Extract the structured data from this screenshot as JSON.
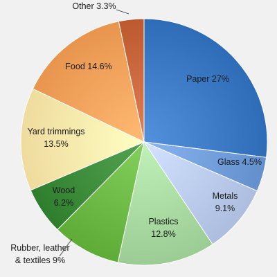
{
  "chart_data": {
    "type": "pie",
    "title": "",
    "start_angle_deg": 0,
    "direction": "clockwise",
    "slices": [
      {
        "name": "Paper",
        "value": 27,
        "label_lines": [
          "Paper 27%"
        ],
        "color": "#3a78c4"
      },
      {
        "name": "Glass",
        "value": 4.5,
        "label_lines": [
          "Glass 4.5%"
        ],
        "color": "#6f9bd8"
      },
      {
        "name": "Metals",
        "value": 9.1,
        "label_lines": [
          "Metals",
          "9.1%"
        ],
        "color": "#b9c9ea"
      },
      {
        "name": "Plastics",
        "value": 12.8,
        "label_lines": [
          "Plastics",
          "12.8%"
        ],
        "color": "#a7d8a0"
      },
      {
        "name": "Rubber, leather & textiles",
        "value": 9,
        "label_lines": [
          "Rubber, leather",
          "& textiles 9%"
        ],
        "color": "#6bb744"
      },
      {
        "name": "Wood",
        "value": 6.2,
        "label_lines": [
          "Wood",
          "6.2%"
        ],
        "color": "#3a8a3a"
      },
      {
        "name": "Yard trimmings",
        "value": 13.5,
        "label_lines": [
          "Yard trimmings",
          "13.5%"
        ],
        "color": "#fbe7aa"
      },
      {
        "name": "Food",
        "value": 14.6,
        "label_lines": [
          "Food 14.6%"
        ],
        "color": "#f4a15a"
      },
      {
        "name": "Other",
        "value": 3.3,
        "label_lines": [
          "Other 3.3%"
        ],
        "color": "#c8653a"
      }
    ]
  }
}
